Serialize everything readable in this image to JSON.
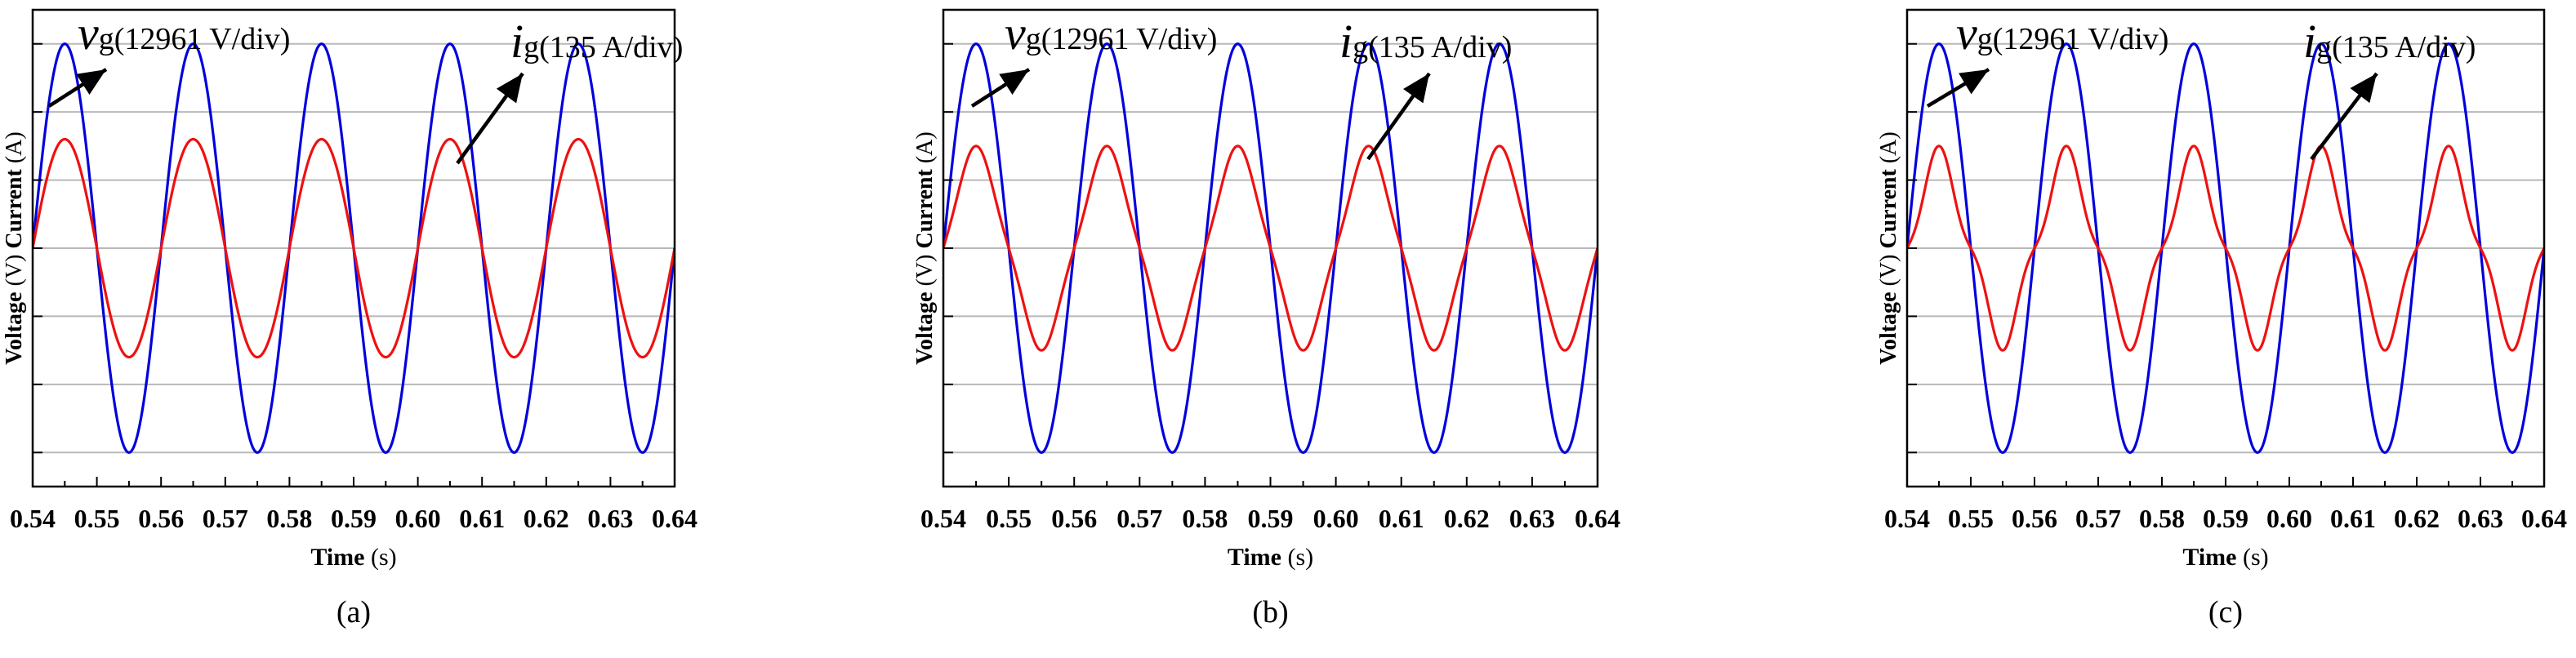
{
  "chart_data": [
    {
      "type": "line",
      "panel_label": "(a)",
      "xlabel": "Time",
      "xlabel_unit": "(s)",
      "ylabel_parts": [
        {
          "text": "Voltage",
          "bold": true
        },
        {
          "text": " (V) ",
          "bold": false
        },
        {
          "text": "Current",
          "bold": true
        },
        {
          "text": " (A)",
          "bold": false
        }
      ],
      "xlim": [
        0.54,
        0.64
      ],
      "ylim": [
        -3.5,
        3.5
      ],
      "x_ticks": [
        "0.54",
        "0.55",
        "0.56",
        "0.57",
        "0.58",
        "0.59",
        "0.60",
        "0.61",
        "0.62",
        "0.63",
        "0.64"
      ],
      "grid_y": [
        -3,
        -2,
        -1,
        0,
        1,
        2,
        3
      ],
      "frequency_hz": 50,
      "series": [
        {
          "name": "v_g",
          "color": "#0000dd",
          "amplitude_div": 3.0,
          "distortion": 0.0,
          "scale_label": "(12961 V/div)"
        },
        {
          "name": "i_g",
          "color": "#ee1111",
          "amplitude_div": 1.6,
          "distortion": 0.0,
          "scale_label": "(135 A/div)"
        }
      ],
      "annotations": [
        {
          "symbol": "v",
          "sub": "g",
          "text": "(12961 V/div)"
        },
        {
          "symbol": "i",
          "sub": "g",
          "text": "(135 A/div)"
        }
      ]
    },
    {
      "type": "line",
      "panel_label": "(b)",
      "xlabel": "Time",
      "xlabel_unit": "(s)",
      "ylabel_parts": [
        {
          "text": "Voltage",
          "bold": true
        },
        {
          "text": " (V) ",
          "bold": false
        },
        {
          "text": "Current",
          "bold": true
        },
        {
          "text": " (A)",
          "bold": false
        }
      ],
      "xlim": [
        0.54,
        0.64
      ],
      "ylim": [
        -3.5,
        3.5
      ],
      "x_ticks": [
        "0.54",
        "0.55",
        "0.56",
        "0.57",
        "0.58",
        "0.59",
        "0.60",
        "0.61",
        "0.62",
        "0.63",
        "0.64"
      ],
      "grid_y": [
        -3,
        -2,
        -1,
        0,
        1,
        2,
        3
      ],
      "frequency_hz": 50,
      "series": [
        {
          "name": "v_g",
          "color": "#0000dd",
          "amplitude_div": 3.0,
          "distortion": 0.0,
          "scale_label": "(12961 V/div)"
        },
        {
          "name": "i_g",
          "color": "#ee1111",
          "amplitude_div": 1.5,
          "distortion": 0.08,
          "scale_label": "(135 A/div)"
        }
      ],
      "annotations": [
        {
          "symbol": "v",
          "sub": "g",
          "text": "(12961 V/div)"
        },
        {
          "symbol": "i",
          "sub": "g",
          "text": "(135 A/div)"
        }
      ]
    },
    {
      "type": "line",
      "panel_label": "(c)",
      "xlabel": "Time",
      "xlabel_unit": "(s)",
      "ylabel_parts": [
        {
          "text": "Voltage",
          "bold": true
        },
        {
          "text": " (V) ",
          "bold": false
        },
        {
          "text": "Current",
          "bold": true
        },
        {
          "text": " (A)",
          "bold": false
        }
      ],
      "xlim": [
        0.54,
        0.64
      ],
      "ylim": [
        -3.5,
        3.5
      ],
      "x_ticks": [
        "0.54",
        "0.55",
        "0.56",
        "0.57",
        "0.58",
        "0.59",
        "0.60",
        "0.61",
        "0.62",
        "0.63",
        "0.64"
      ],
      "grid_y": [
        -3,
        -2,
        -1,
        0,
        1,
        2,
        3
      ],
      "frequency_hz": 50,
      "series": [
        {
          "name": "v_g",
          "color": "#0000dd",
          "amplitude_div": 3.0,
          "distortion": 0.0,
          "scale_label": "(12961 V/div)"
        },
        {
          "name": "i_g",
          "color": "#ee1111",
          "amplitude_div": 1.5,
          "distortion": 0.18,
          "scale_label": "(135 A/div)"
        }
      ],
      "annotations": [
        {
          "symbol": "v",
          "sub": "g",
          "text": "(12961 V/div)"
        },
        {
          "symbol": "i",
          "sub": "g",
          "text": "(135 A/div)"
        }
      ]
    }
  ]
}
